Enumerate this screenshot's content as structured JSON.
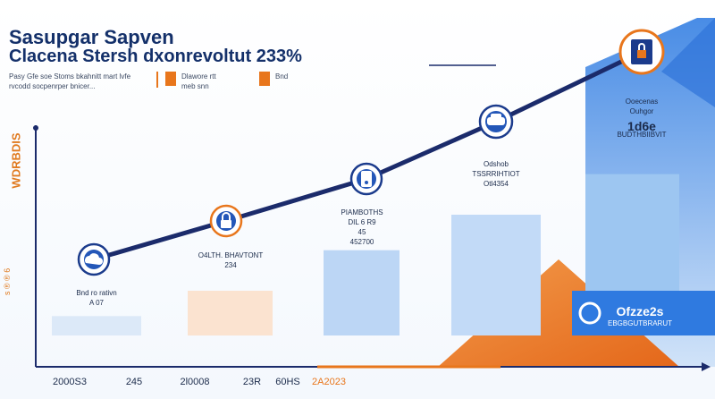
{
  "header": {
    "title": "Sasupgar Sapven",
    "subtitle": "Clacena Stersh dxonrevoltut 233%",
    "note": "Pasy Gfe soe Stoms bkahnitt mart lvfe rvcodd socpenrper bnicer...",
    "legend": [
      {
        "label": "Dlawore rtt\nmeb snn",
        "color": "#e8761c",
        "icon": "bar-swatch-icon"
      },
      {
        "label": "Bnd",
        "color": "#e8761c",
        "icon": "bar-swatch-icon"
      }
    ]
  },
  "axis": {
    "ylabel": "WDRBDIS",
    "ytick": "s ® ® 6"
  },
  "chart_data": {
    "type": "bar",
    "title": "Sasupgar Sapven",
    "subtitle": "Clacena Stersh dxonrevoltut 233%",
    "ylabel": "WDRBDIS",
    "xlabel": "",
    "categories": [
      "2000S3",
      "245",
      "2l0008",
      "23R",
      "60HS",
      "2A2023"
    ],
    "values": [
      1.0,
      1.5,
      2.3,
      3.0,
      3.8,
      5.0
    ],
    "ylim": [
      0,
      6
    ],
    "bar_colors": [
      "#dce9f8",
      "#fbe3d0",
      "#bcd6f5",
      "#c2daf7",
      "#9dc6f1",
      "#4d8fe4"
    ],
    "trend_line": true,
    "bar_labels": [
      [
        "Bnd ro rativn",
        "A 07"
      ],
      [
        "O4LTH. BHAVTONT",
        "234"
      ],
      [
        "PIAMBOTHS",
        "DIL 6 R9",
        "45",
        "452700"
      ],
      [
        "Odshob",
        "TSSRRIHTIOT",
        "Otl4354"
      ],
      [
        "Ooecenas",
        "Ouhgor",
        "1d6e",
        "BUDTHBIIBVIT"
      ],
      [
        "Ofzze2s",
        "EBGBGUTBRARUT"
      ]
    ],
    "icons": [
      "cloud-icon",
      "padlock-icon",
      "phone-icon",
      "car-icon",
      "shield-lock-icon",
      "badge-icon"
    ]
  }
}
